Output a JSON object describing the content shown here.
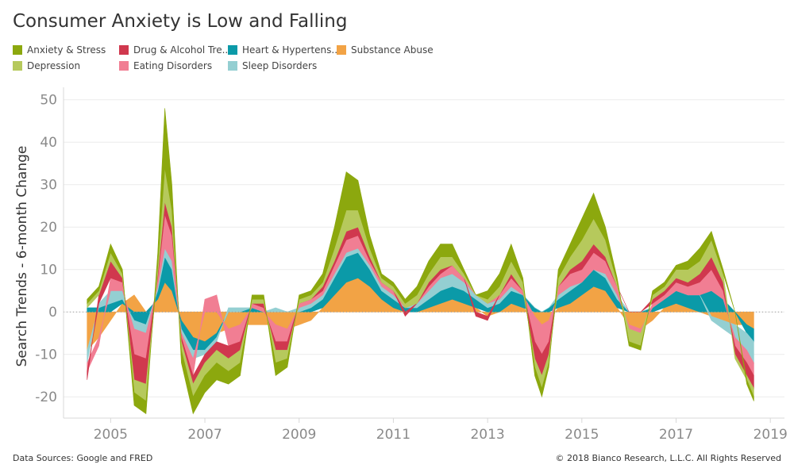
{
  "title": "Consumer Anxiety is Low and Falling",
  "footer": {
    "source": "Data Sources: Google and FRED",
    "copyright": "© 2018 Bianco Research, L.L.C. All Rights Reserved"
  },
  "legend": [
    {
      "label": "Anxiety & Stress",
      "color": "#8ca80e"
    },
    {
      "label": "Drug & Alcohol Tre..",
      "color": "#d0384e"
    },
    {
      "label": "Heart & Hypertens..",
      "color": "#0b9aa8"
    },
    {
      "label": "Substance Abuse",
      "color": "#f2a345"
    },
    {
      "label": "Depression",
      "color": "#b6c95c"
    },
    {
      "label": "Eating Disorders",
      "color": "#f17e93"
    },
    {
      "label": "Sleep Disorders",
      "color": "#94cfd2"
    }
  ],
  "chart_data": {
    "type": "area",
    "stacked": true,
    "ylabel": "Search Trends - 6-month Change",
    "xlabel": "",
    "ylim": [
      -25,
      52
    ],
    "xlim": [
      2004.0,
      2019.3
    ],
    "yticks": [
      50,
      40,
      30,
      20,
      10,
      0,
      -10,
      -20
    ],
    "xticks": [
      "2005",
      "2007",
      "2009",
      "2011",
      "2013",
      "2015",
      "2017",
      "2019"
    ],
    "xtick_positions": [
      2005,
      2007,
      2009,
      2011,
      2013,
      2015,
      2017,
      2019
    ],
    "grid": true,
    "x": [
      2004.5,
      2004.75,
      2005.0,
      2005.25,
      2005.5,
      2005.75,
      2006.0,
      2006.15,
      2006.3,
      2006.5,
      2006.75,
      2007.0,
      2007.25,
      2007.5,
      2007.75,
      2008.0,
      2008.25,
      2008.5,
      2008.75,
      2009.0,
      2009.25,
      2009.5,
      2009.75,
      2010.0,
      2010.25,
      2010.5,
      2010.75,
      2011.0,
      2011.25,
      2011.5,
      2011.75,
      2012.0,
      2012.25,
      2012.5,
      2012.75,
      2013.0,
      2013.25,
      2013.5,
      2013.75,
      2014.0,
      2014.15,
      2014.3,
      2014.5,
      2014.75,
      2015.0,
      2015.25,
      2015.5,
      2015.75,
      2016.0,
      2016.25,
      2016.5,
      2016.75,
      2017.0,
      2017.25,
      2017.5,
      2017.75,
      2018.0,
      2018.25,
      2018.5,
      2018.65
    ],
    "series": [
      {
        "name": "Substance Abuse",
        "color": "#f2a345",
        "values": [
          -9,
          -6,
          -2,
          2,
          4,
          0,
          3,
          7,
          5,
          -2,
          -6,
          -7,
          -5,
          -4,
          -3,
          -3,
          -3,
          -3,
          -4,
          -3,
          -2,
          1,
          4,
          7,
          8,
          6,
          3,
          1,
          0,
          0,
          1,
          2,
          3,
          2,
          1,
          -1,
          0,
          2,
          1,
          -1,
          -3,
          -2,
          1,
          2,
          4,
          6,
          5,
          1,
          -3,
          -4,
          -2,
          1,
          2,
          1,
          0,
          -1,
          -2,
          -3,
          -3,
          -4
        ]
      },
      {
        "name": "Heart & Hypertens..",
        "color": "#0b9aa8",
        "values": [
          1,
          1,
          2,
          1,
          -2,
          -3,
          2,
          6,
          5,
          -2,
          -3,
          -2,
          -1,
          0,
          0,
          1,
          0,
          0,
          0,
          0,
          1,
          2,
          4,
          6,
          6,
          4,
          2,
          2,
          1,
          1,
          2,
          3,
          3,
          3,
          2,
          1,
          2,
          3,
          3,
          1,
          0,
          1,
          2,
          3,
          3,
          4,
          3,
          2,
          0,
          0,
          1,
          2,
          3,
          3,
          4,
          5,
          3,
          0,
          -2,
          -3
        ]
      },
      {
        "name": "Sleep Disorders",
        "color": "#94cfd2",
        "values": [
          -3,
          1,
          3,
          2,
          -2,
          -2,
          1,
          2,
          2,
          -1,
          -2,
          -1,
          -1,
          1,
          1,
          0,
          0,
          1,
          0,
          1,
          1,
          1,
          1,
          1,
          1,
          1,
          1,
          1,
          0,
          1,
          2,
          3,
          3,
          2,
          1,
          1,
          1,
          1,
          0,
          0,
          0,
          0,
          1,
          1,
          0,
          0,
          1,
          1,
          0,
          0,
          0,
          0,
          0,
          0,
          0,
          -1,
          -2,
          -3,
          -4,
          -5
        ]
      },
      {
        "name": "Eating Disorders",
        "color": "#f17e93",
        "values": [
          -2,
          -2,
          3,
          2,
          -6,
          -6,
          2,
          8,
          6,
          -1,
          -4,
          3,
          4,
          -4,
          -4,
          1,
          1,
          -4,
          -3,
          1,
          1,
          1,
          2,
          3,
          3,
          1,
          1,
          1,
          0,
          0,
          1,
          1,
          2,
          1,
          0,
          0,
          1,
          2,
          1,
          -6,
          -7,
          -5,
          2,
          3,
          3,
          4,
          3,
          2,
          -1,
          -1,
          1,
          1,
          2,
          2,
          3,
          5,
          2,
          -2,
          -3,
          -3
        ]
      },
      {
        "name": "Drug & Alcohol Tre..",
        "color": "#d0384e",
        "values": [
          -2,
          2,
          4,
          1,
          -6,
          -6,
          1,
          3,
          2,
          -1,
          -2,
          -2,
          -2,
          -3,
          -2,
          0,
          1,
          -2,
          -2,
          0,
          0,
          1,
          1,
          2,
          2,
          1,
          0,
          0,
          -1,
          0,
          1,
          1,
          0,
          0,
          -1,
          -1,
          0,
          1,
          0,
          -4,
          -5,
          -3,
          0,
          1,
          2,
          2,
          1,
          0,
          0,
          0,
          1,
          1,
          1,
          1,
          2,
          3,
          2,
          -2,
          -3,
          -3
        ]
      },
      {
        "name": "Depression",
        "color": "#b6c95c",
        "values": [
          1,
          1,
          2,
          1,
          -3,
          -4,
          2,
          8,
          4,
          -2,
          -3,
          -3,
          -3,
          -3,
          -3,
          1,
          1,
          -3,
          -2,
          1,
          1,
          1,
          3,
          5,
          4,
          2,
          1,
          1,
          1,
          2,
          2,
          3,
          2,
          1,
          0,
          1,
          2,
          3,
          2,
          -2,
          -3,
          -2,
          2,
          3,
          5,
          6,
          4,
          1,
          -3,
          -3,
          1,
          1,
          2,
          3,
          3,
          4,
          2,
          -1,
          -1,
          -2
        ]
      },
      {
        "name": "Anxiety & Stress",
        "color": "#8ca80e",
        "values": [
          1,
          1,
          2,
          1,
          -3,
          -3,
          3,
          14,
          6,
          -3,
          -4,
          -4,
          -4,
          -3,
          -3,
          1,
          1,
          -3,
          -2,
          1,
          1,
          2,
          5,
          9,
          7,
          3,
          1,
          1,
          1,
          2,
          3,
          3,
          3,
          1,
          0,
          2,
          3,
          4,
          1,
          -2,
          -2,
          -1,
          2,
          3,
          5,
          6,
          3,
          1,
          -1,
          -1,
          1,
          1,
          1,
          2,
          3,
          2,
          1,
          0,
          -1,
          -1
        ]
      }
    ]
  }
}
